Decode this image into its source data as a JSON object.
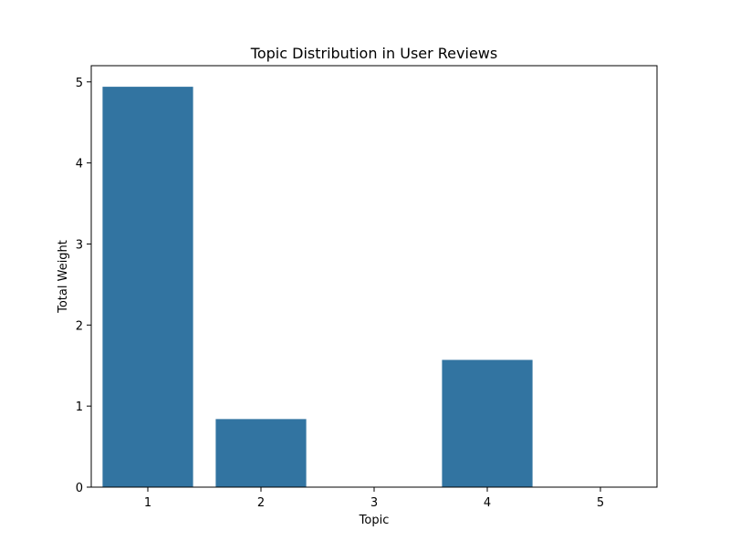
{
  "chart_data": {
    "type": "bar",
    "title": "Topic Distribution in User Reviews",
    "xlabel": "Topic",
    "ylabel": "Total Weight",
    "categories": [
      "1",
      "2",
      "3",
      "4",
      "5"
    ],
    "values": [
      4.94,
      0.84,
      0.0,
      1.57,
      0.0
    ],
    "ylim": [
      0,
      5.2
    ],
    "yticks": [
      "0",
      "1",
      "2",
      "3",
      "4",
      "5"
    ],
    "grid": false,
    "bar_color": "#3274a1"
  }
}
